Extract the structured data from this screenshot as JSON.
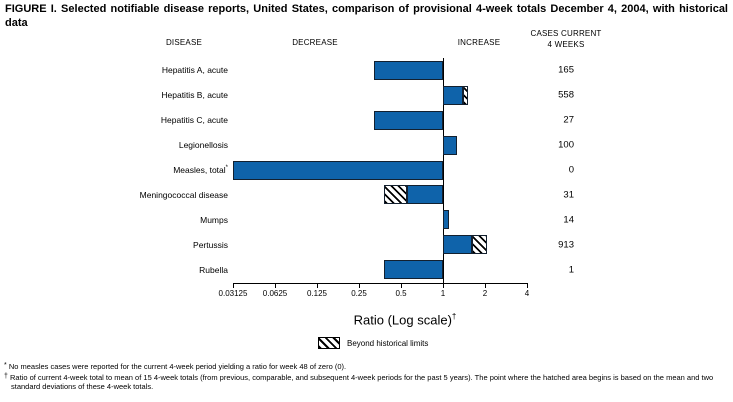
{
  "figure_title": "FIGURE I. Selected notifiable disease reports, United States, comparison of provisional 4-week totals December 4, 2004, with historical data",
  "column_headers": {
    "disease": "DISEASE",
    "decrease": "DECREASE",
    "increase": "INCREASE",
    "cases_line1": "CASES CURRENT",
    "cases_line2": "4 WEEKS"
  },
  "chart_data": {
    "type": "bar",
    "orientation": "horizontal",
    "scale": "log2",
    "baseline": 1,
    "xlim": [
      0.03125,
      4
    ],
    "x_tick_values": [
      0.03125,
      0.0625,
      0.125,
      0.25,
      0.5,
      1,
      2,
      4
    ],
    "x_tick_labels": [
      "0.03125",
      "0.0625",
      "0.125",
      "0.25",
      "0.5",
      "1",
      "2",
      "4"
    ],
    "xlabel": "Ratio (Log scale)",
    "xlabel_sup": "†",
    "bar_color": "#0f63aa",
    "bar_border_color": "#13202f",
    "legend": {
      "swatch": "diagonal-hatch",
      "label": "Beyond historical limits"
    },
    "rows": [
      {
        "disease": "Hepatitis A, acute",
        "sup": "",
        "cases": "165",
        "ratio": 0.32,
        "hatch_from": null
      },
      {
        "disease": "Hepatitis B, acute",
        "sup": "",
        "cases": "558",
        "ratio": 1.51,
        "hatch_from": 1.4
      },
      {
        "disease": "Hepatitis C, acute",
        "sup": "",
        "cases": "27",
        "ratio": 0.32,
        "hatch_from": null
      },
      {
        "disease": "Legionellosis",
        "sup": "",
        "cases": "100",
        "ratio": 1.26,
        "hatch_from": null
      },
      {
        "disease": "Measles, total",
        "sup": "*",
        "cases": "0",
        "ratio": 0.03125,
        "hatch_from": null
      },
      {
        "disease": "Meningococcal disease",
        "sup": "",
        "cases": "31",
        "ratio": 0.38,
        "hatch_from": 0.55
      },
      {
        "disease": "Mumps",
        "sup": "",
        "cases": "14",
        "ratio": 1.1,
        "hatch_from": null
      },
      {
        "disease": "Pertussis",
        "sup": "",
        "cases": "913",
        "ratio": 2.07,
        "hatch_from": 1.61
      },
      {
        "disease": "Rubella",
        "sup": "",
        "cases": "1",
        "ratio": 0.38,
        "hatch_from": null
      }
    ]
  },
  "footnotes": [
    {
      "marker": "*",
      "text": "No measles cases were reported for the current 4-week period yielding a ratio for week 48 of zero (0)."
    },
    {
      "marker": "†",
      "text": "Ratio of current 4-week total to mean of 15 4-week totals (from previous, comparable, and subsequent 4-week periods for the past 5 years). The point where the hatched area begins is based on the mean and two standard deviations of these 4-week totals."
    }
  ]
}
